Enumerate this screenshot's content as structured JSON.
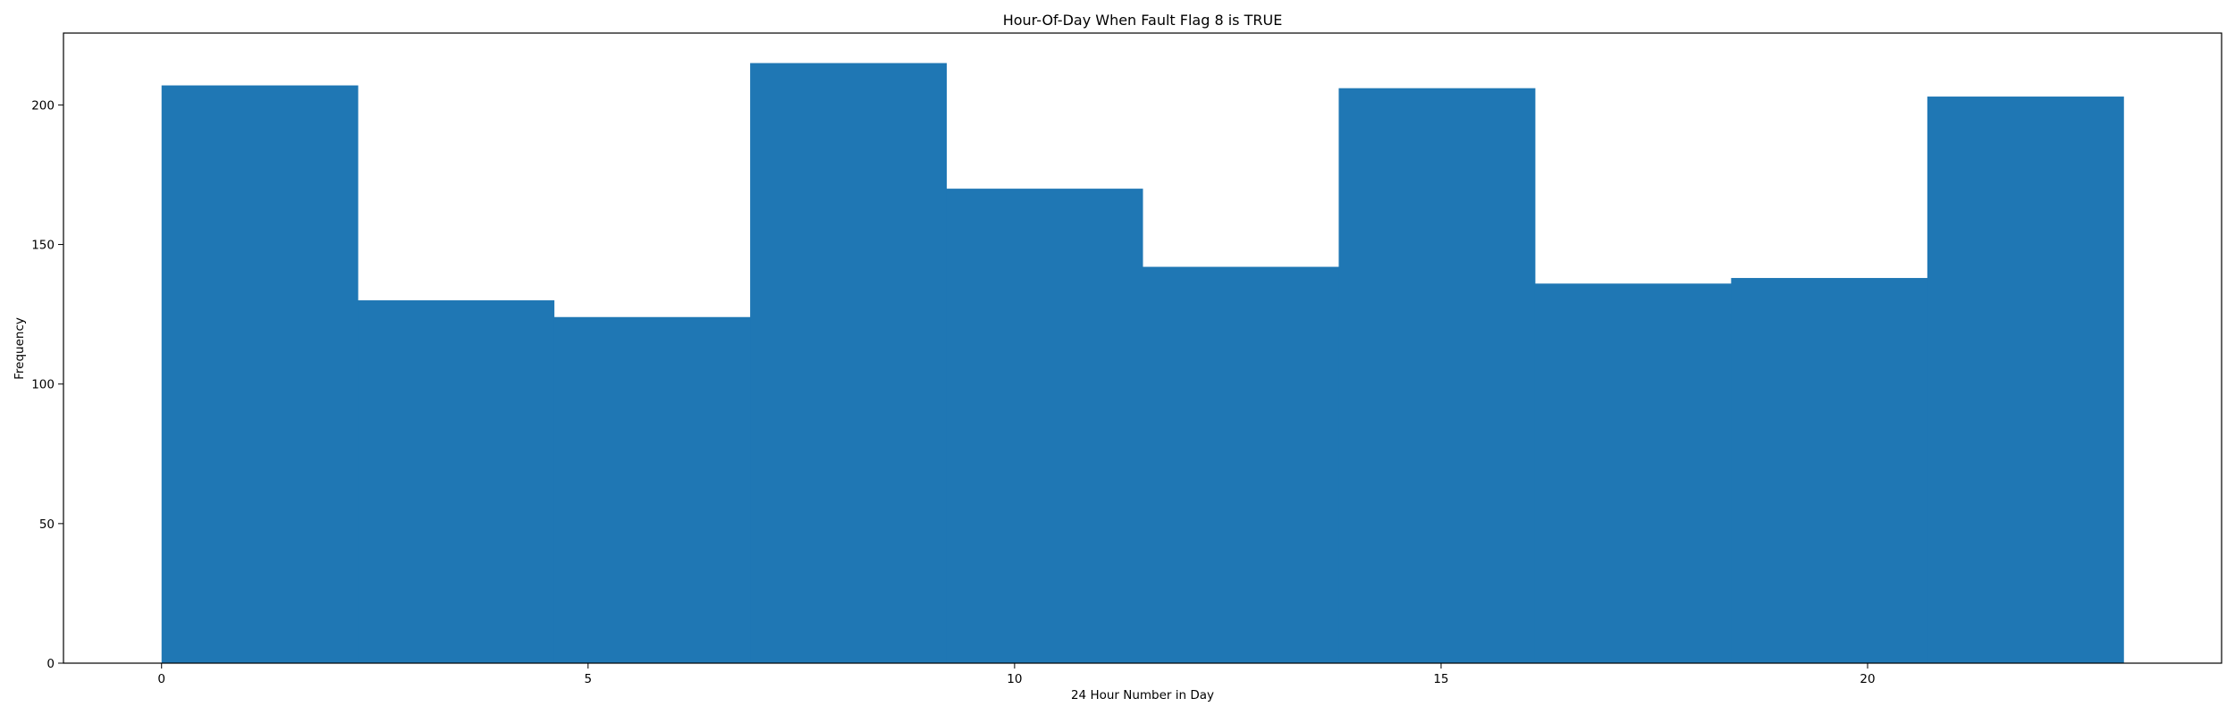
{
  "chart_data": {
    "type": "bar",
    "title": "Hour-Of-Day When Fault Flag 8 is TRUE",
    "xlabel": "24 Hour Number in Day",
    "ylabel": "Frequency",
    "bin_edges": [
      0,
      2.3,
      4.6,
      6.9,
      9.2,
      11.5,
      13.8,
      16.1,
      18.4,
      20.7,
      23
    ],
    "values": [
      207,
      130,
      124,
      215,
      170,
      142,
      206,
      136,
      138,
      203
    ],
    "xlim": [
      -1.15,
      24.15
    ],
    "ylim": [
      0,
      225.75
    ],
    "x_ticks": [
      0,
      5,
      10,
      15,
      20
    ],
    "y_ticks": [
      0,
      50,
      100,
      150,
      200
    ],
    "bar_color": "#1f77b4",
    "grid": false,
    "legend": "none"
  }
}
